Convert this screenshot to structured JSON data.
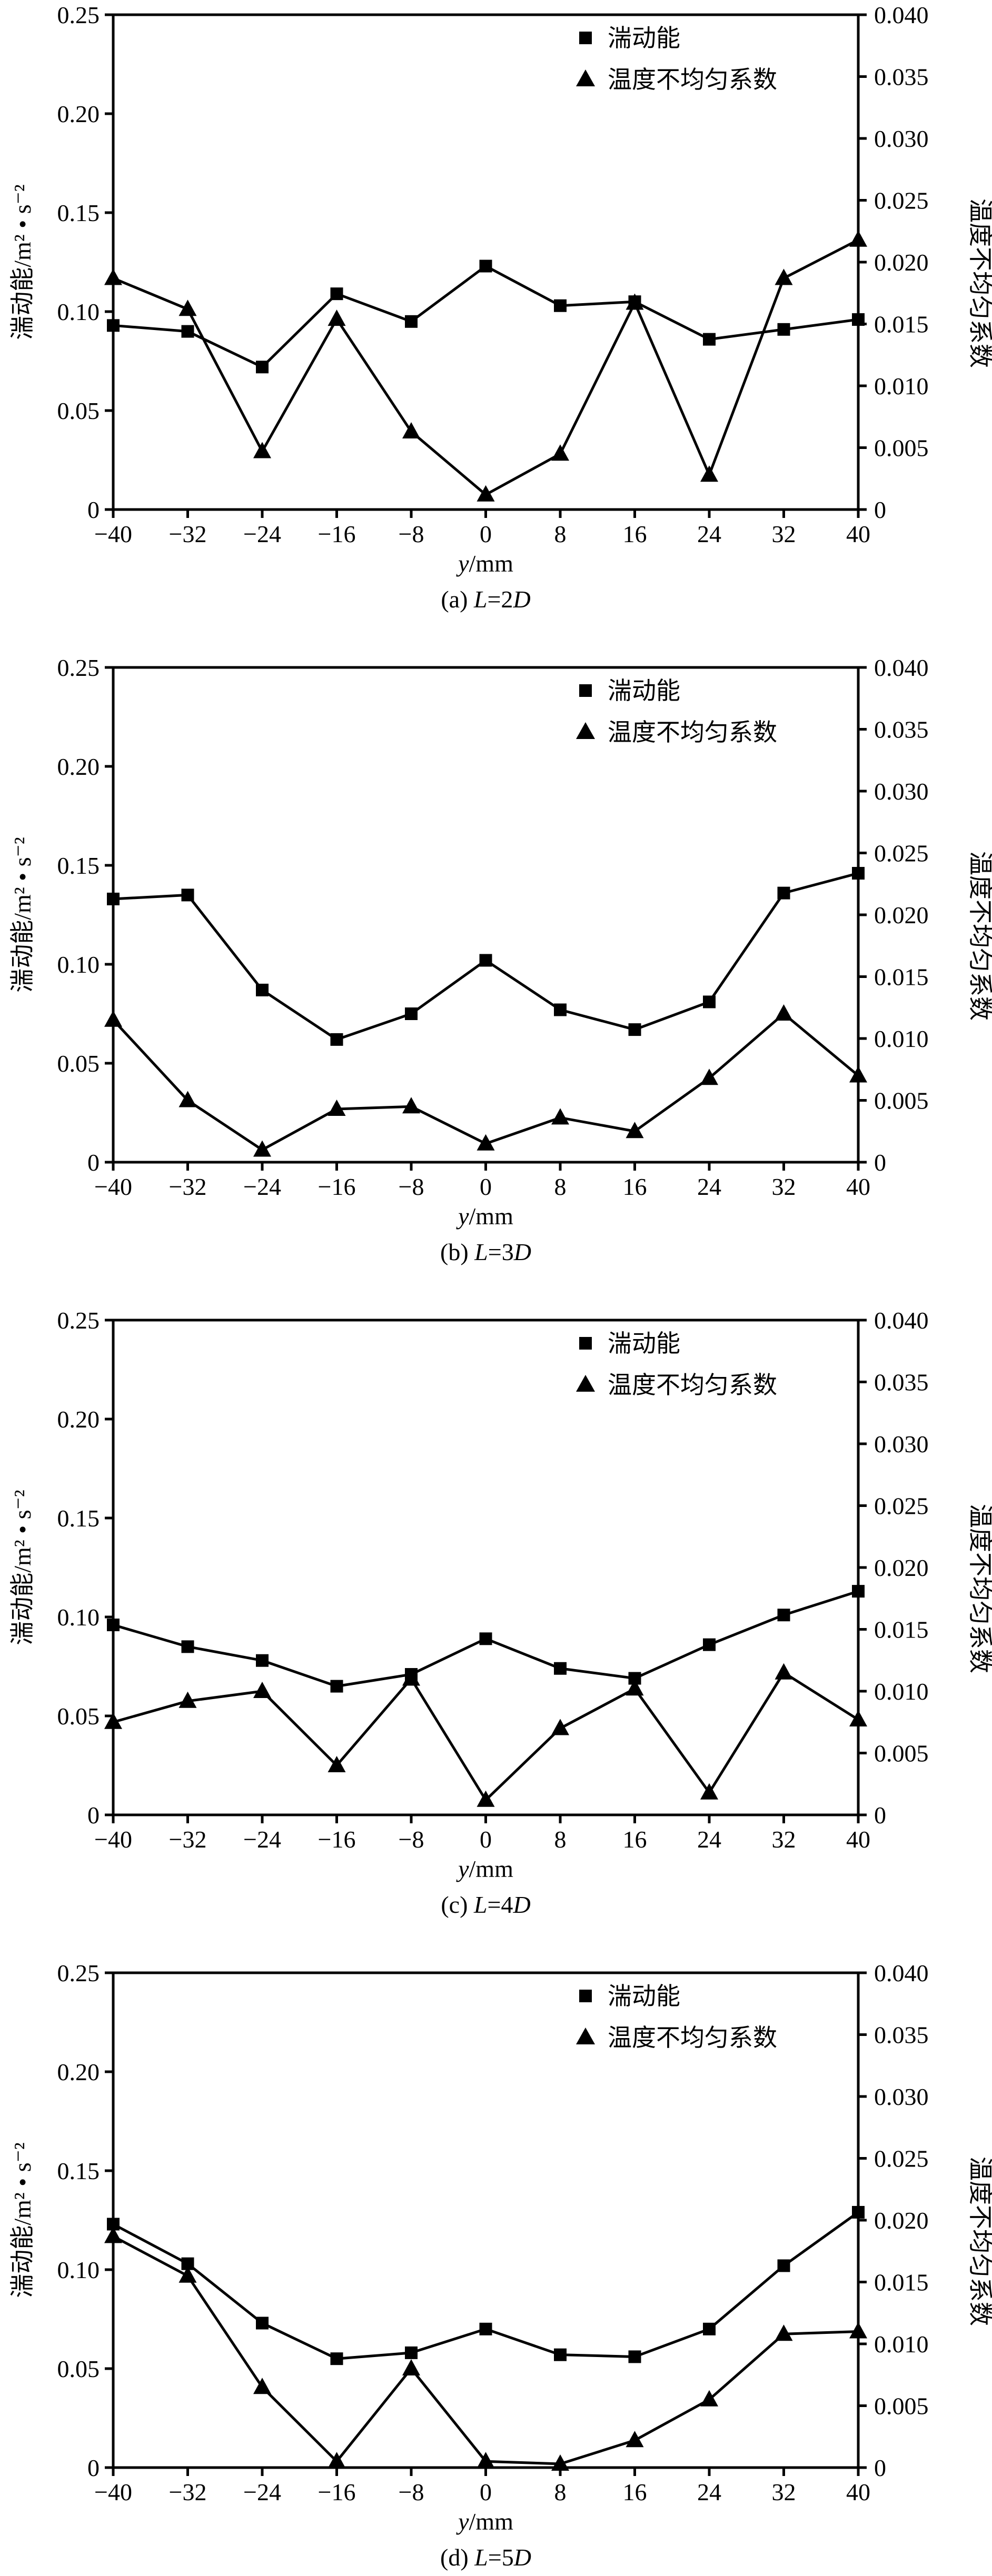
{
  "chart_data": [
    {
      "type": "line",
      "caption_prefix": "(a) ",
      "caption_var": "L",
      "caption_value": "=2",
      "caption_unit": "D",
      "x": [
        -40,
        -32,
        -24,
        -16,
        -8,
        0,
        8,
        16,
        24,
        32,
        40
      ],
      "xlim": [
        -40,
        40
      ],
      "xticks": [
        "−40",
        "−32",
        "−24",
        "−16",
        "−8",
        "0",
        "8",
        "16",
        "24",
        "32",
        "40"
      ],
      "xlabel_var": "y",
      "xlabel_unit": "/mm",
      "ylabel_left": "湍动能/m² • s⁻²",
      "ylabel_right": "温度不均匀系数",
      "ylim_left": [
        0,
        0.25
      ],
      "ylim_right": [
        0,
        0.04
      ],
      "yticks_left": [
        "0",
        "0.05",
        "0.10",
        "0.15",
        "0.20",
        "0.25"
      ],
      "yticks_right": [
        "0",
        "0.005",
        "0.010",
        "0.015",
        "0.020",
        "0.025",
        "0.030",
        "0.035",
        "0.040"
      ],
      "legend_position": "top-right",
      "series": [
        {
          "name": "湍动能",
          "marker": "square",
          "axis": "left",
          "values": [
            0.093,
            0.09,
            0.072,
            0.109,
            0.095,
            0.123,
            0.103,
            0.105,
            0.086,
            0.091,
            0.096
          ]
        },
        {
          "name": "温度不均匀系数",
          "marker": "triangle",
          "axis": "right",
          "values": [
            0.0187,
            0.0162,
            0.0047,
            0.0154,
            0.0063,
            0.0012,
            0.0045,
            0.0167,
            0.0028,
            0.0187,
            0.0218
          ]
        }
      ]
    },
    {
      "type": "line",
      "caption_prefix": "(b) ",
      "caption_var": "L",
      "caption_value": "=3",
      "caption_unit": "D",
      "x": [
        -40,
        -32,
        -24,
        -16,
        -8,
        0,
        8,
        16,
        24,
        32,
        40
      ],
      "xlim": [
        -40,
        40
      ],
      "xticks": [
        "−40",
        "−32",
        "−24",
        "−16",
        "−8",
        "0",
        "8",
        "16",
        "24",
        "32",
        "40"
      ],
      "xlabel_var": "y",
      "xlabel_unit": "/mm",
      "ylabel_left": "湍动能/m² • s⁻²",
      "ylabel_right": "温度不均匀系数",
      "ylim_left": [
        0,
        0.25
      ],
      "ylim_right": [
        0,
        0.04
      ],
      "yticks_left": [
        "0",
        "0.05",
        "0.10",
        "0.15",
        "0.20",
        "0.25"
      ],
      "yticks_right": [
        "0",
        "0.005",
        "0.010",
        "0.015",
        "0.020",
        "0.025",
        "0.030",
        "0.035",
        "0.040"
      ],
      "legend_position": "top-right",
      "series": [
        {
          "name": "湍动能",
          "marker": "square",
          "axis": "left",
          "values": [
            0.133,
            0.135,
            0.087,
            0.062,
            0.075,
            0.102,
            0.077,
            0.067,
            0.081,
            0.136,
            0.146
          ]
        },
        {
          "name": "温度不均匀系数",
          "marker": "triangle",
          "axis": "right",
          "values": [
            0.0115,
            0.005,
            0.001,
            0.0043,
            0.0045,
            0.0015,
            0.0036,
            0.0025,
            0.0068,
            0.012,
            0.007
          ]
        }
      ]
    },
    {
      "type": "line",
      "caption_prefix": "(c) ",
      "caption_var": "L",
      "caption_value": "=4",
      "caption_unit": "D",
      "x": [
        -40,
        -32,
        -24,
        -16,
        -8,
        0,
        8,
        16,
        24,
        32,
        40
      ],
      "xlim": [
        -40,
        40
      ],
      "xticks": [
        "−40",
        "−32",
        "−24",
        "−16",
        "−8",
        "0",
        "8",
        "16",
        "24",
        "32",
        "40"
      ],
      "xlabel_var": "y",
      "xlabel_unit": "/mm",
      "ylabel_left": "湍动能/m² • s⁻²",
      "ylabel_right": "温度不均匀系数",
      "ylim_left": [
        0,
        0.25
      ],
      "ylim_right": [
        0,
        0.04
      ],
      "yticks_left": [
        "0",
        "0.05",
        "0.10",
        "0.15",
        "0.20",
        "0.25"
      ],
      "yticks_right": [
        "0",
        "0.005",
        "0.010",
        "0.015",
        "0.020",
        "0.025",
        "0.030",
        "0.035",
        "0.040"
      ],
      "legend_position": "top-right",
      "series": [
        {
          "name": "湍动能",
          "marker": "square",
          "axis": "left",
          "values": [
            0.096,
            0.085,
            0.078,
            0.065,
            0.071,
            0.089,
            0.074,
            0.069,
            0.086,
            0.101,
            0.113
          ]
        },
        {
          "name": "温度不均匀系数",
          "marker": "triangle",
          "axis": "right",
          "values": [
            0.0075,
            0.0092,
            0.01,
            0.004,
            0.011,
            0.0012,
            0.007,
            0.0102,
            0.0018,
            0.0115,
            0.0077
          ]
        }
      ]
    },
    {
      "type": "line",
      "caption_prefix": "(d) ",
      "caption_var": "L",
      "caption_value": "=5",
      "caption_unit": "D",
      "x": [
        -40,
        -32,
        -24,
        -16,
        -8,
        0,
        8,
        16,
        24,
        32,
        40
      ],
      "xlim": [
        -40,
        40
      ],
      "xticks": [
        "−40",
        "−32",
        "−24",
        "−16",
        "−8",
        "0",
        "8",
        "16",
        "24",
        "32",
        "40"
      ],
      "xlabel_var": "y",
      "xlabel_unit": "/mm",
      "ylabel_left": "湍动能/m² • s⁻²",
      "ylabel_right": "温度不均匀系数",
      "ylim_left": [
        0,
        0.25
      ],
      "ylim_right": [
        0,
        0.04
      ],
      "yticks_left": [
        "0",
        "0.05",
        "0.10",
        "0.15",
        "0.20",
        "0.25"
      ],
      "yticks_right": [
        "0",
        "0.005",
        "0.010",
        "0.015",
        "0.020",
        "0.025",
        "0.030",
        "0.035",
        "0.040"
      ],
      "legend_position": "top-right",
      "series": [
        {
          "name": "湍动能",
          "marker": "square",
          "axis": "left",
          "values": [
            0.123,
            0.103,
            0.073,
            0.055,
            0.058,
            0.07,
            0.057,
            0.056,
            0.07,
            0.102,
            0.129
          ]
        },
        {
          "name": "温度不均匀系数",
          "marker": "triangle",
          "axis": "right",
          "values": [
            0.0187,
            0.0155,
            0.0065,
            0.0005,
            0.008,
            0.0005,
            0.0003,
            0.0022,
            0.0055,
            0.0108,
            0.011
          ]
        }
      ]
    }
  ]
}
